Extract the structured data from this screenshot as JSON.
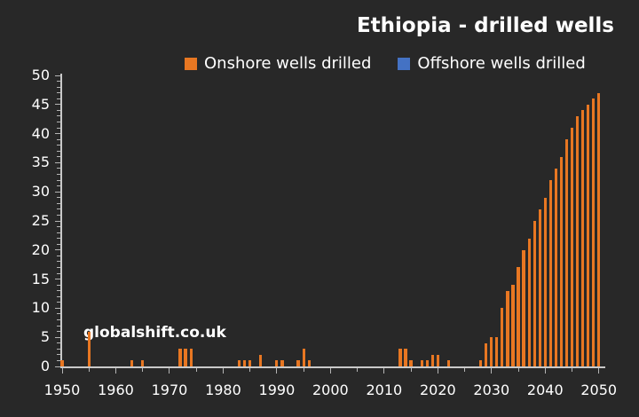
{
  "title": "Ethiopia - drilled wells",
  "watermark": "globalshift.co.uk",
  "legend": [
    {
      "label": "Onshore wells drilled",
      "color": "#e87722"
    },
    {
      "label": "Offshore wells drilled",
      "color": "#4472c4"
    }
  ],
  "colors": {
    "background": "#282828",
    "axis": "#c9c9c9",
    "text": "#ffffff",
    "onshore": "#e87722",
    "offshore": "#4472c4"
  },
  "chart_data": {
    "type": "bar",
    "title": "Ethiopia - drilled wells",
    "xlabel": "",
    "ylabel": "",
    "xlim": [
      1950,
      2051
    ],
    "ylim": [
      0,
      50
    ],
    "x_major_step": 10,
    "x_minor_step": 5,
    "y_major_step": 5,
    "y_minor_step": 1,
    "x_tick_labels": [
      "1950",
      "1960",
      "1970",
      "1980",
      "1990",
      "2000",
      "2010",
      "2020",
      "2030",
      "2040",
      "2050"
    ],
    "y_tick_labels": [
      "0",
      "5",
      "10",
      "15",
      "20",
      "25",
      "30",
      "35",
      "40",
      "45",
      "50"
    ],
    "grid": false,
    "legend_position": "top",
    "series": [
      {
        "name": "Onshore wells drilled",
        "color": "#e87722",
        "data": [
          [
            1950,
            1
          ],
          [
            1955,
            6
          ],
          [
            1963,
            1
          ],
          [
            1965,
            1
          ],
          [
            1972,
            3
          ],
          [
            1973,
            3
          ],
          [
            1974,
            3
          ],
          [
            1983,
            1
          ],
          [
            1984,
            1
          ],
          [
            1985,
            1
          ],
          [
            1987,
            2
          ],
          [
            1990,
            1
          ],
          [
            1991,
            1
          ],
          [
            1994,
            1
          ],
          [
            1995,
            3
          ],
          [
            1996,
            1
          ],
          [
            2013,
            3
          ],
          [
            2014,
            3
          ],
          [
            2015,
            1
          ],
          [
            2017,
            1
          ],
          [
            2018,
            1
          ],
          [
            2019,
            2
          ],
          [
            2020,
            2
          ],
          [
            2022,
            1
          ],
          [
            2028,
            1
          ],
          [
            2029,
            4
          ],
          [
            2030,
            5
          ],
          [
            2031,
            5
          ],
          [
            2032,
            10
          ],
          [
            2033,
            13
          ],
          [
            2034,
            14
          ],
          [
            2035,
            17
          ],
          [
            2036,
            20
          ],
          [
            2037,
            22
          ],
          [
            2038,
            25
          ],
          [
            2039,
            27
          ],
          [
            2040,
            29
          ],
          [
            2041,
            32
          ],
          [
            2042,
            34
          ],
          [
            2043,
            36
          ],
          [
            2044,
            39
          ],
          [
            2045,
            41
          ],
          [
            2046,
            43
          ],
          [
            2047,
            44
          ],
          [
            2048,
            45
          ],
          [
            2049,
            46
          ],
          [
            2050,
            47
          ]
        ]
      },
      {
        "name": "Offshore wells drilled",
        "color": "#4472c4",
        "data": []
      }
    ]
  }
}
